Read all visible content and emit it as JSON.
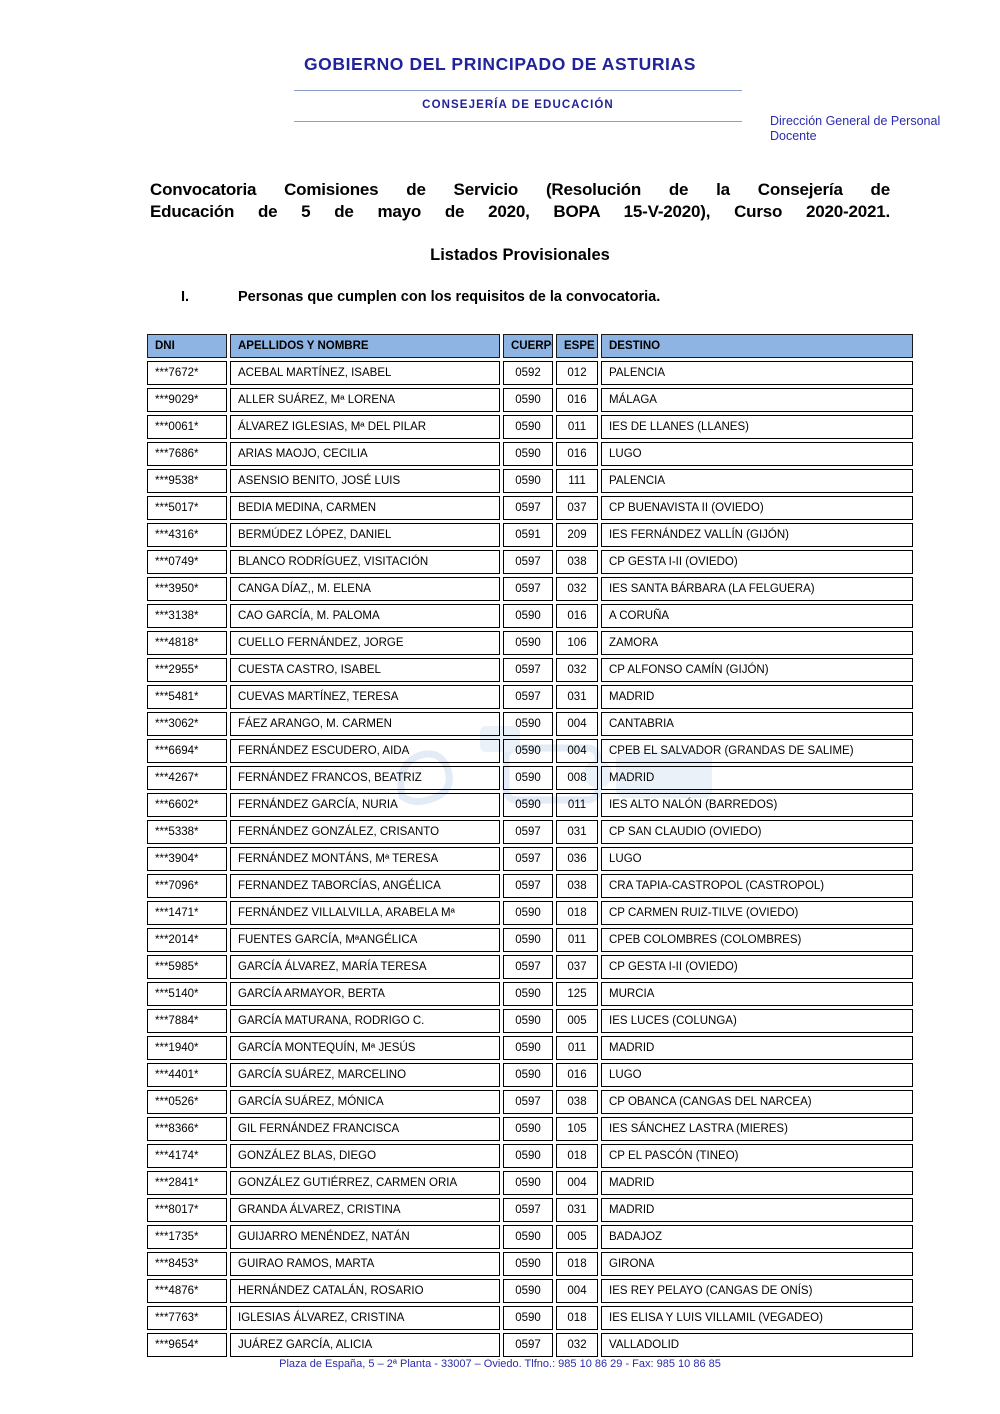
{
  "letterhead": {
    "org_name": "GOBIERNO DEL PRINCIPADO DE ASTURIAS",
    "department": "CONSEJERÍA DE EDUCACIÓN",
    "direction": "Dirección General de Personal Docente"
  },
  "title": {
    "line1": "Convocatoria Comisiones de Servicio (Resolución de la Consejería de",
    "line2": "Educación de 5 de mayo de 2020, BOPA 15-V-2020), Curso 2020-2021.",
    "subtitle": "Listados Provisionales",
    "section_number": "I.",
    "section_text": "Personas que cumplen con los requisitos de la convocatoria."
  },
  "table": {
    "headers": [
      "DNI",
      "APELLIDOS Y NOMBRE",
      "CUERPO",
      "ESPE",
      "DESTINO"
    ],
    "rows": [
      [
        "***7672*",
        "ACEBAL MARTÍNEZ, ISABEL",
        "0592",
        "012",
        "PALENCIA"
      ],
      [
        "***9029*",
        "ALLER SUÁREZ, Mª LORENA",
        "0590",
        "016",
        "MÁLAGA"
      ],
      [
        "***0061*",
        "ÁLVAREZ IGLESIAS, Mª DEL PILAR",
        "0590",
        "011",
        "IES DE LLANES (LLANES)"
      ],
      [
        "***7686*",
        "ARIAS MAOJO, CECILIA",
        "0590",
        "016",
        "LUGO"
      ],
      [
        "***9538*",
        "ASENSIO BENITO, JOSÉ LUIS",
        "0590",
        "111",
        "PALENCIA"
      ],
      [
        "***5017*",
        "BEDIA MEDINA, CARMEN",
        "0597",
        "037",
        "CP BUENAVISTA II (OVIEDO)"
      ],
      [
        "***4316*",
        "BERMÚDEZ LÓPEZ, DANIEL",
        "0591",
        "209",
        "IES FERNÁNDEZ VALLÍN (GIJÓN)"
      ],
      [
        "***0749*",
        "BLANCO RODRÍGUEZ, VISITACIÓN",
        "0597",
        "038",
        "CP GESTA I-II (OVIEDO)"
      ],
      [
        "***3950*",
        "CANGA DÍAZ,, M. ELENA",
        "0597",
        "032",
        "IES SANTA BÁRBARA (LA FELGUERA)"
      ],
      [
        "***3138*",
        "CAO GARCÍA, M. PALOMA",
        "0590",
        "016",
        "A CORUÑA"
      ],
      [
        "***4818*",
        "CUELLO FERNÁNDEZ, JORGE",
        "0590",
        "106",
        "ZAMORA"
      ],
      [
        "***2955*",
        "CUESTA CASTRO, ISABEL",
        "0597",
        "032",
        "CP ALFONSO CAMÍN (GIJÓN)"
      ],
      [
        "***5481*",
        "CUEVAS MARTÍNEZ, TERESA",
        "0597",
        "031",
        "MADRID"
      ],
      [
        "***3062*",
        "FÁEZ ARANGO, M. CARMEN",
        "0590",
        "004",
        "CANTABRIA"
      ],
      [
        "***6694*",
        "FERNÁNDEZ ESCUDERO, AIDA",
        "0590",
        "004",
        "CPEB EL SALVADOR (GRANDAS DE SALIME)"
      ],
      [
        "***4267*",
        "FERNÁNDEZ FRANCOS, BEATRIZ",
        "0590",
        "008",
        "MADRID"
      ],
      [
        "***6602*",
        "FERNÁNDEZ GARCÍA, NURIA",
        "0590",
        "011",
        "IES ALTO NALÓN (BARREDOS)"
      ],
      [
        "***5338*",
        "FERNÁNDEZ GONZÁLEZ, CRISANTO",
        "0597",
        "031",
        "CP SAN CLAUDIO (OVIEDO)"
      ],
      [
        "***3904*",
        "FERNÁNDEZ MONTÁNS, Mª TERESA",
        "0597",
        "036",
        "LUGO"
      ],
      [
        "***7096*",
        "FERNANDEZ TABORCÍAS, ANGÉLICA",
        "0597",
        "038",
        "CRA TAPIA-CASTROPOL (CASTROPOL)"
      ],
      [
        "***1471*",
        "FERNÁNDEZ  VILLALVILLA, ARABELA Mª",
        "0590",
        "018",
        "CP CARMEN RUIZ-TILVE (OVIEDO)"
      ],
      [
        "***2014*",
        "FUENTES GARCÍA, MªANGÉLICA",
        "0590",
        "011",
        "CPEB COLOMBRES (COLOMBRES)"
      ],
      [
        "***5985*",
        "GARCÍA ÁLVAREZ, MARÍA TERESA",
        "0597",
        "037",
        "CP GESTA I-II (OVIEDO)"
      ],
      [
        "***5140*",
        "GARCÍA ARMAYOR, BERTA",
        "0590",
        "125",
        "MURCIA"
      ],
      [
        "***7884*",
        "GARCÍA MATURANA, RODRIGO C.",
        "0590",
        "005",
        "IES LUCES (COLUNGA)"
      ],
      [
        "***1940*",
        "GARCÍA MONTEQUÍN, Mª JESÚS",
        "0590",
        "011",
        "MADRID"
      ],
      [
        "***4401*",
        "GARCÍA SUÁREZ, MARCELINO",
        "0590",
        "016",
        "LUGO"
      ],
      [
        "***0526*",
        "GARCÍA SUÁREZ, MÓNICA",
        "0597",
        "038",
        "CP OBANCA (CANGAS DEL NARCEA)"
      ],
      [
        "***8366*",
        "GIL FERNÁNDEZ FRANCISCA",
        "0590",
        "105",
        "IES SÁNCHEZ LASTRA (MIERES)"
      ],
      [
        "***4174*",
        "GONZÁLEZ BLAS, DIEGO",
        "0590",
        "018",
        "CP EL PASCÓN (TINEO)"
      ],
      [
        "***2841*",
        "GONZÁLEZ GUTIÉRREZ, CARMEN ORIA",
        "0590",
        "004",
        "MADRID"
      ],
      [
        "***8017*",
        "GRANDA ÁLVAREZ, CRISTINA",
        "0597",
        "031",
        "MADRID"
      ],
      [
        "***1735*",
        "GUIJARRO MENÉNDEZ, NATÁN",
        "0590",
        "005",
        "BADAJOZ"
      ],
      [
        "***8453*",
        "GUIRAO RAMOS, MARTA",
        "0590",
        "018",
        "GIRONA"
      ],
      [
        "***4876*",
        "HERNÁNDEZ CATALÁN, ROSARIO",
        "0590",
        "004",
        "IES REY PELAYO (CANGAS DE ONÍS)"
      ],
      [
        "***7763*",
        "IGLESIAS ÁLVAREZ, CRISTINA",
        "0590",
        "018",
        "IES ELISA Y LUIS VILLAMIL (VEGADEO)"
      ],
      [
        "***9654*",
        "JUÁREZ GARCÍA, ALICIA",
        "0597",
        "032",
        "VALLADOLID"
      ]
    ]
  },
  "footer": {
    "address": "Plaza de España, 5 – 2ª Planta - 33007 – Oviedo. Tlfno.: 985 10 86 29 - Fax: 985 10 86 85"
  },
  "colors": {
    "navy": "#22229A",
    "blue": "#2B2BAD",
    "rule": "#8C9CC8",
    "header_bg": "#8DB4E2"
  }
}
